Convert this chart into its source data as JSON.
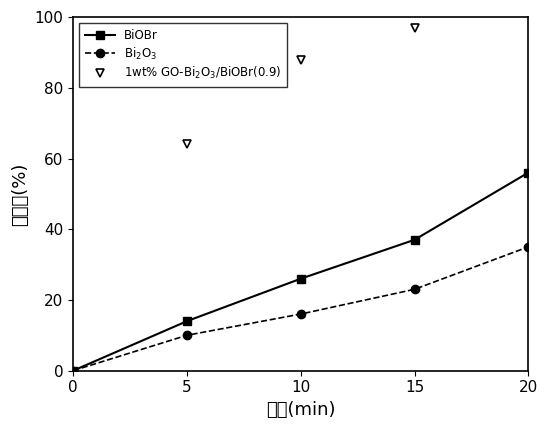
{
  "series": [
    {
      "label": "BiOBr",
      "x": [
        0,
        5,
        10,
        15,
        20
      ],
      "y": [
        0,
        14,
        26,
        37,
        56
      ],
      "marker": "s",
      "linestyle": "-",
      "color": "#000000",
      "markersize": 6,
      "linewidth": 1.5
    },
    {
      "label": "Bi$_2$O$_3$",
      "x": [
        0,
        5,
        10,
        15,
        20
      ],
      "y": [
        0,
        10,
        16,
        23,
        35
      ],
      "marker": "o",
      "linestyle": "--",
      "color": "#000000",
      "markersize": 6,
      "linewidth": 1.2
    },
    {
      "label": "1wt% GO-Bi$_2$O$_3$/BiOBr(0.9)",
      "x": [
        5,
        10,
        15
      ],
      "y": [
        64,
        88,
        97
      ],
      "marker": "v",
      "linestyle": "none",
      "color": "#000000",
      "markersize": 6,
      "linewidth": 0
    }
  ],
  "xlabel": "时间(min)",
  "ylabel": "降解率(%)",
  "xlim": [
    0,
    20
  ],
  "ylim": [
    0,
    100
  ],
  "xticks": [
    0,
    5,
    10,
    15,
    20
  ],
  "yticks": [
    0,
    20,
    40,
    60,
    80,
    100
  ],
  "legend_loc": "upper left",
  "background_color": "#ffffff",
  "axis_fontsize": 13,
  "tick_fontsize": 11,
  "legend_fontsize": 8.5
}
